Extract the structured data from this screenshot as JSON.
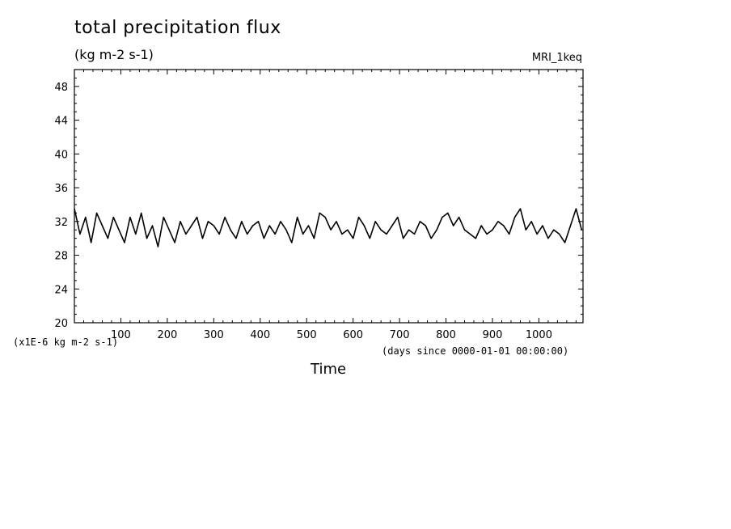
{
  "chart_data": {
    "type": "line",
    "title": "total precipitation flux",
    "units": "(kg m-2 s-1)",
    "model_label": "MRI_1keq",
    "scale_label": "(x1E-6 kg m-2 s-1)",
    "xlabel": "Time",
    "x_units": "(days since 0000-01-01 00:00:00)",
    "xlim": [
      0,
      1095
    ],
    "ylim": [
      20,
      50
    ],
    "x_ticks": [
      100,
      200,
      300,
      400,
      500,
      600,
      700,
      800,
      900,
      1000
    ],
    "y_ticks": [
      20,
      24,
      28,
      32,
      36,
      40,
      44,
      48
    ],
    "series": [
      {
        "x": [
          0,
          12,
          24,
          36,
          48,
          60,
          72,
          84,
          96,
          108,
          120,
          132,
          144,
          156,
          168,
          180,
          192,
          204,
          216,
          228,
          240,
          252,
          264,
          276,
          288,
          300,
          312,
          324,
          336,
          348,
          360,
          372,
          384,
          396,
          408,
          420,
          432,
          444,
          456,
          468,
          480,
          492,
          504,
          516,
          528,
          540,
          552,
          564,
          576,
          588,
          600,
          612,
          624,
          636,
          648,
          660,
          672,
          684,
          696,
          708,
          720,
          732,
          744,
          756,
          768,
          780,
          792,
          804,
          816,
          828,
          840,
          852,
          864,
          876,
          888,
          900,
          912,
          924,
          936,
          948,
          960,
          972,
          984,
          996,
          1008,
          1020,
          1032,
          1044,
          1056,
          1068,
          1080,
          1092
        ],
        "y": [
          33.5,
          30.5,
          32.5,
          29.5,
          33.0,
          31.5,
          30.0,
          32.5,
          31.0,
          29.5,
          32.5,
          30.5,
          33.0,
          30.0,
          31.5,
          29.0,
          32.5,
          31.0,
          29.5,
          32.0,
          30.5,
          31.5,
          32.5,
          30.0,
          32.0,
          31.5,
          30.5,
          32.5,
          31.0,
          30.0,
          32.0,
          30.5,
          31.5,
          32.0,
          30.0,
          31.5,
          30.5,
          32.0,
          31.0,
          29.5,
          32.5,
          30.5,
          31.5,
          30.0,
          33.0,
          32.5,
          31.0,
          32.0,
          30.5,
          31.0,
          30.0,
          32.5,
          31.5,
          30.0,
          32.0,
          31.0,
          30.5,
          31.5,
          32.5,
          30.0,
          31.0,
          30.5,
          32.0,
          31.5,
          30.0,
          31.0,
          32.5,
          33.0,
          31.5,
          32.5,
          31.0,
          30.5,
          30.0,
          31.5,
          30.5,
          31.0,
          32.0,
          31.5,
          30.5,
          32.5,
          33.5,
          31.0,
          32.0,
          30.5,
          31.5,
          30.0,
          31.0,
          30.5,
          29.5,
          31.5,
          33.5,
          31.0
        ]
      }
    ]
  }
}
